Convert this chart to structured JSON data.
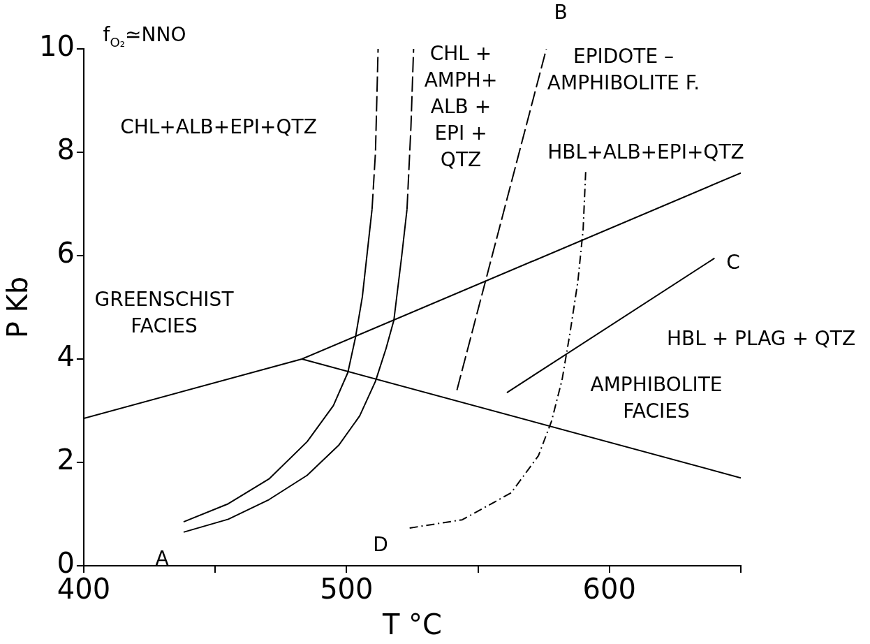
{
  "chart_data": {
    "type": "line",
    "xlabel": "T °C",
    "ylabel": "P Kb",
    "xlim": [
      400,
      650
    ],
    "ylim": [
      0,
      10
    ],
    "xticks": [
      400,
      {
        "value": 450,
        "label": null
      },
      500,
      {
        "value": 550,
        "label": null
      },
      600,
      {
        "value": 650,
        "label": null
      }
    ],
    "yticks": [
      0,
      2,
      4,
      6,
      8,
      10
    ],
    "grid": false,
    "legend": false,
    "marker": "none",
    "series": [
      {
        "color": "#000000",
        "line_style": "solid",
        "x": [
          400,
          483,
          650
        ],
        "values": [
          2.85,
          4.0,
          7.6
        ]
      },
      {
        "color": "#000000",
        "line_style": "solid",
        "x": [
          483,
          650
        ],
        "values": [
          4.0,
          1.7
        ]
      },
      {
        "color": "#000000",
        "line_style": "solid",
        "x": [
          438,
          455,
          470.5,
          485,
          495,
          500.5,
          503.4,
          506,
          509.7
        ],
        "values": [
          0.85,
          1.2,
          1.68,
          2.4,
          3.1,
          3.74,
          4.42,
          5.2,
          6.9
        ]
      },
      {
        "color": "#000000",
        "line_style": "dashed",
        "x": [
          509.7,
          511,
          512
        ],
        "values": [
          6.9,
          8,
          10
        ]
      },
      {
        "color": "#000000",
        "line_style": "solid",
        "x": [
          438,
          455,
          470.5,
          485,
          497,
          505,
          511,
          515,
          518,
          521,
          523
        ],
        "values": [
          0.65,
          0.9,
          1.28,
          1.75,
          2.33,
          2.9,
          3.57,
          4.2,
          4.75,
          6,
          6.9
        ]
      },
      {
        "color": "#000000",
        "line_style": "dashed",
        "x": [
          523,
          524.5,
          525.5
        ],
        "values": [
          6.9,
          8.5,
          10
        ]
      },
      {
        "color": "#000000",
        "line_style": "dashed",
        "x": [
          542,
          576
        ],
        "values": [
          3.4,
          10
        ]
      },
      {
        "color": "#000000",
        "line_style": "solid",
        "x": [
          561,
          640
        ],
        "values": [
          3.35,
          5.95
        ]
      },
      {
        "color": "#000000",
        "line_style": "dotted",
        "x": [
          524,
          544,
          562.6,
          573,
          578,
          582,
          585,
          588,
          590,
          591
        ],
        "values": [
          0.73,
          0.89,
          1.41,
          2.13,
          2.8,
          3.6,
          4.5,
          5.5,
          6.5,
          7.65
        ]
      }
    ],
    "annotations": [
      "f$_{O₂}$≃NNO",
      "CHL+ALB+EPI+QTZ",
      "CHL +\nAMPH+\nALB +\nEPI +\nQTZ",
      "EPIDOTE –\nAMPHIBOLITE F.",
      "HBL+ALB+EPI+QTZ",
      "GREENSCHIST\nFACIES",
      "HBL + PLAG + QTZ",
      "AMPHIBOLITE\nFACIES",
      "A",
      "B",
      "C",
      "D"
    ]
  }
}
